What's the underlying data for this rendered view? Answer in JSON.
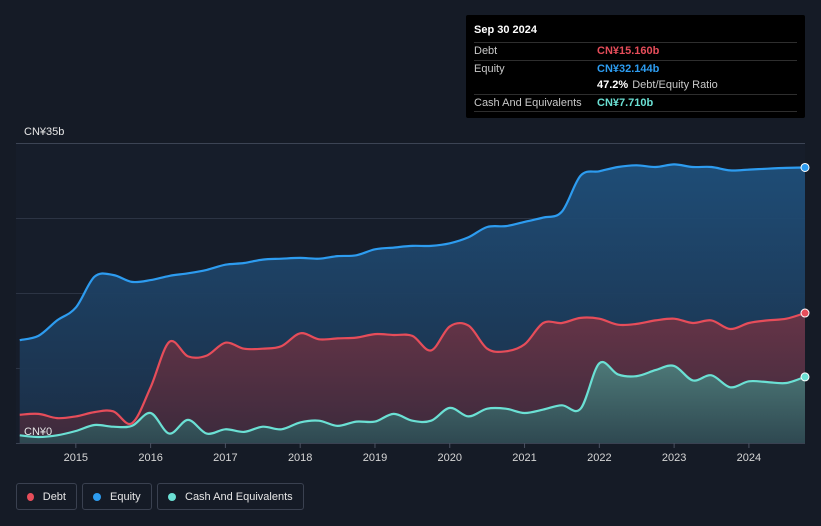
{
  "tooltip": {
    "date": "Sep 30 2024",
    "debt_label": "Debt",
    "debt_value": "CN¥15.160b",
    "equity_label": "Equity",
    "equity_value": "CN¥32.144b",
    "ratio_value": "47.2%",
    "ratio_label": "Debt/Equity Ratio",
    "cash_label": "Cash And Equivalents",
    "cash_value": "CN¥7.710b"
  },
  "legend": {
    "debt": "Debt",
    "equity": "Equity",
    "cash": "Cash And Equivalents"
  },
  "colors": {
    "debt": "#e64d5a",
    "equity": "#2d9cf0",
    "cash": "#6be0d4",
    "bg": "#151b26",
    "grid": "#2c3444"
  },
  "chart_data": {
    "type": "area",
    "title": "",
    "y_top_label": "CN¥35b",
    "y_bottom_label": "CN¥0",
    "ylim": [
      0,
      35
    ],
    "xlim": [
      2014.2,
      2024.75
    ],
    "x_ticks": [
      2015,
      2016,
      2017,
      2018,
      2019,
      2020,
      2021,
      2022,
      2023,
      2024
    ],
    "x_tick_labels": [
      "2015",
      "2016",
      "2017",
      "2018",
      "2019",
      "2020",
      "2021",
      "2022",
      "2023",
      "2024"
    ],
    "series": [
      {
        "name": "Equity",
        "x": [
          2014.25,
          2014.5,
          2014.75,
          2015.0,
          2015.25,
          2015.5,
          2015.75,
          2016.0,
          2016.25,
          2016.5,
          2016.75,
          2017.0,
          2017.25,
          2017.5,
          2017.75,
          2018.0,
          2018.25,
          2018.5,
          2018.75,
          2019.0,
          2019.25,
          2019.5,
          2019.75,
          2020.0,
          2020.25,
          2020.5,
          2020.75,
          2021.0,
          2021.25,
          2021.5,
          2021.75,
          2022.0,
          2022.25,
          2022.5,
          2022.75,
          2023.0,
          2023.25,
          2023.5,
          2023.75,
          2024.0,
          2024.25,
          2024.5,
          2024.75
        ],
        "values": [
          12.0,
          12.5,
          14.3,
          15.8,
          19.4,
          19.6,
          18.8,
          19.0,
          19.5,
          19.8,
          20.2,
          20.8,
          21.0,
          21.4,
          21.5,
          21.6,
          21.5,
          21.8,
          21.9,
          22.6,
          22.8,
          23.0,
          23.0,
          23.3,
          24.0,
          25.2,
          25.3,
          25.8,
          26.3,
          27.0,
          31.2,
          31.7,
          32.2,
          32.4,
          32.2,
          32.5,
          32.2,
          32.2,
          31.8,
          31.9,
          32.0,
          32.1,
          32.144
        ]
      },
      {
        "name": "Debt",
        "x": [
          2014.25,
          2014.5,
          2014.75,
          2015.0,
          2015.25,
          2015.5,
          2015.75,
          2016.0,
          2016.25,
          2016.5,
          2016.75,
          2017.0,
          2017.25,
          2017.5,
          2017.75,
          2018.0,
          2018.25,
          2018.5,
          2018.75,
          2019.0,
          2019.25,
          2019.5,
          2019.75,
          2020.0,
          2020.25,
          2020.5,
          2020.75,
          2021.0,
          2021.25,
          2021.5,
          2021.75,
          2022.0,
          2022.25,
          2022.5,
          2022.75,
          2023.0,
          2023.25,
          2023.5,
          2023.75,
          2024.0,
          2024.25,
          2024.5,
          2024.75
        ],
        "values": [
          3.3,
          3.4,
          2.9,
          3.1,
          3.6,
          3.7,
          2.3,
          6.5,
          11.8,
          10.1,
          10.2,
          11.7,
          11.0,
          11.0,
          11.3,
          12.8,
          12.1,
          12.2,
          12.3,
          12.7,
          12.6,
          12.5,
          10.8,
          13.6,
          13.7,
          11.0,
          10.7,
          11.5,
          14.0,
          14.0,
          14.6,
          14.5,
          13.8,
          13.9,
          14.3,
          14.5,
          14.0,
          14.3,
          13.3,
          14.0,
          14.3,
          14.5,
          15.16
        ]
      },
      {
        "name": "Cash And Equivalents",
        "x": [
          2014.25,
          2014.5,
          2014.75,
          2015.0,
          2015.25,
          2015.5,
          2015.75,
          2016.0,
          2016.25,
          2016.5,
          2016.75,
          2017.0,
          2017.25,
          2017.5,
          2017.75,
          2018.0,
          2018.25,
          2018.5,
          2018.75,
          2019.0,
          2019.25,
          2019.5,
          2019.75,
          2020.0,
          2020.25,
          2020.5,
          2020.75,
          2021.0,
          2021.25,
          2021.5,
          2021.75,
          2022.0,
          2022.25,
          2022.5,
          2022.75,
          2023.0,
          2023.25,
          2023.5,
          2023.75,
          2024.0,
          2024.25,
          2024.5,
          2024.75
        ],
        "values": [
          0.9,
          0.7,
          0.9,
          1.4,
          2.1,
          1.9,
          2.0,
          3.5,
          1.1,
          2.7,
          1.1,
          1.6,
          1.3,
          1.9,
          1.6,
          2.4,
          2.6,
          2.0,
          2.5,
          2.5,
          3.4,
          2.6,
          2.6,
          4.1,
          3.1,
          4.0,
          4.0,
          3.5,
          3.9,
          4.4,
          4.0,
          9.3,
          8.0,
          7.8,
          8.5,
          9.0,
          7.3,
          7.9,
          6.5,
          7.2,
          7.1,
          7.0,
          7.71
        ]
      }
    ]
  }
}
